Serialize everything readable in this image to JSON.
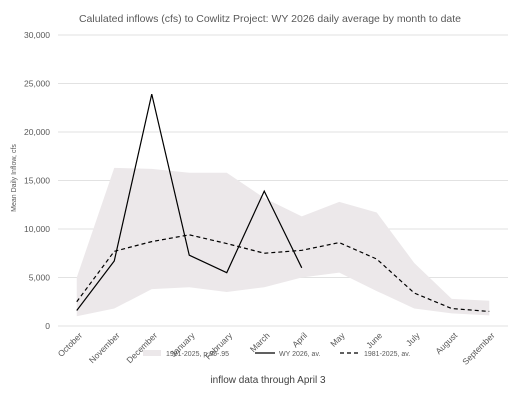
{
  "chart_data": {
    "type": "line",
    "title": "Calulated inflows (cfs) to Cowlitz Project: WY 2026 daily average by month to date",
    "ylabel": "Mean Daily Inflow, cfs",
    "xlabel": "",
    "ylim": [
      0,
      30000
    ],
    "yticks": [
      0,
      5000,
      10000,
      15000,
      20000,
      25000,
      30000
    ],
    "ytick_labels": [
      "0",
      "5,000",
      "10,000",
      "15,000",
      "20,000",
      "25,000",
      "30,000"
    ],
    "grid": true,
    "legend_position": "bottom",
    "categories": [
      "October",
      "November",
      "December",
      "January",
      "February",
      "March",
      "April",
      "May",
      "June",
      "July",
      "August",
      "September"
    ],
    "band": {
      "name": "1981-2025, p.05-.95",
      "color": "#ece8ea",
      "lower": [
        1000,
        1800,
        3800,
        4000,
        3500,
        4000,
        5000,
        5500,
        3600,
        1800,
        1300,
        1100
      ],
      "upper": [
        5000,
        16300,
        16200,
        15800,
        15800,
        13200,
        11300,
        12800,
        11700,
        6500,
        2800,
        2600
      ]
    },
    "series": [
      {
        "name": "WY 2026, av.",
        "style": "solid",
        "color": "#000000",
        "values": [
          1600,
          6700,
          23900,
          7300,
          5500,
          13900,
          6000,
          null,
          null,
          null,
          null,
          null
        ]
      },
      {
        "name": "1981-2025, av.",
        "style": "dashed",
        "color": "#000000",
        "values": [
          2500,
          7700,
          8700,
          9400,
          8500,
          7500,
          7800,
          8600,
          6900,
          3400,
          1800,
          1500
        ]
      }
    ]
  },
  "footnote": "inflow data through April 3"
}
